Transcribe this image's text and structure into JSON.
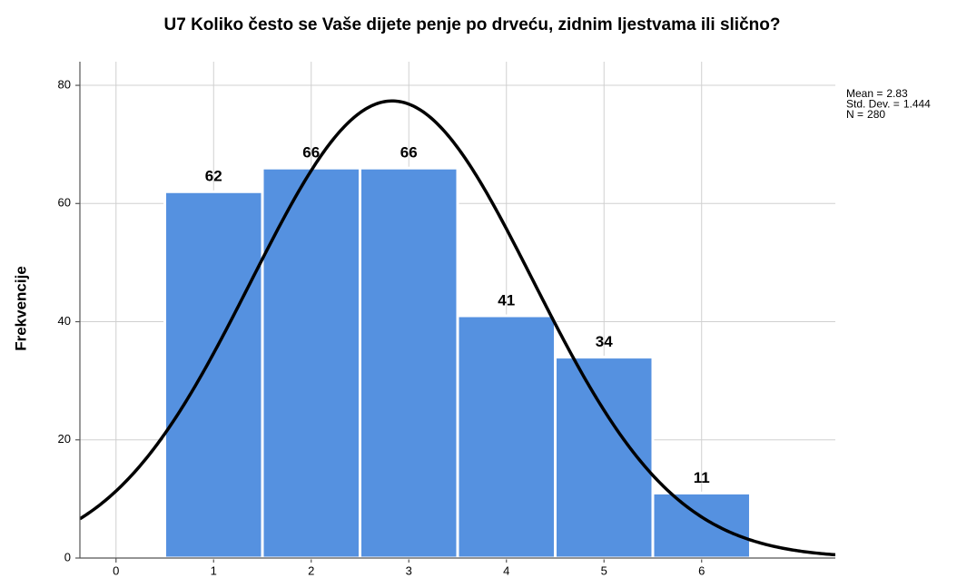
{
  "chart_data": {
    "type": "histogram",
    "title": "U7 Koliko često se Vaše dijete penje po drveću, zidnim ljestvama ili slično?",
    "y_label": "Frekvencije",
    "bins": [
      0.5,
      1.5,
      2.5,
      3.5,
      4.5,
      5.5,
      6.5
    ],
    "values": [
      62,
      66,
      66,
      41,
      34,
      11
    ],
    "color": "#5591e0",
    "curve_color": "#000000",
    "xlim": [
      -0.37,
      7.37
    ],
    "xticks": [
      0,
      1,
      2,
      3,
      4,
      5,
      6
    ],
    "ylim": [
      0,
      84
    ],
    "yticks": [
      0,
      20,
      40,
      60,
      80
    ],
    "grid": true,
    "stats": [
      {
        "label": "Mean =",
        "value": 2.83
      },
      {
        "label": "Std. Dev. =",
        "value": 1.444
      },
      {
        "label": "N =",
        "value": 280
      }
    ]
  }
}
